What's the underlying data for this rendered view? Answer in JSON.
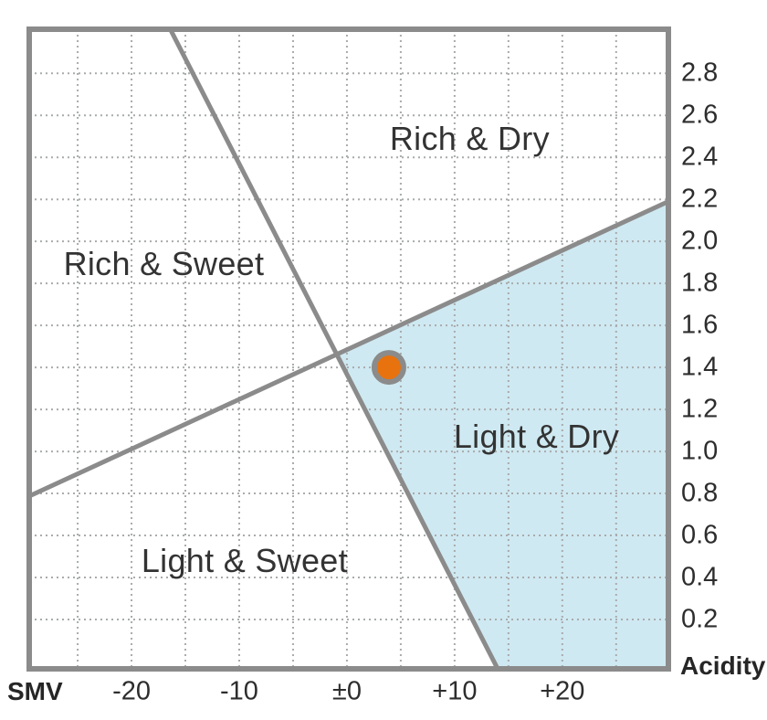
{
  "chart_data": {
    "type": "scatter",
    "title": "",
    "x_axis": {
      "label": "SMV",
      "range": [
        -29.5,
        29.85
      ],
      "ticks": [
        {
          "value": -20,
          "label": "-20"
        },
        {
          "value": -10,
          "label": "-10"
        },
        {
          "value": 0,
          "label": "±0"
        },
        {
          "value": 10,
          "label": "+10"
        },
        {
          "value": 20,
          "label": "+20"
        }
      ],
      "grid": true,
      "grid_values": [
        -25,
        -20,
        -15,
        -10,
        -5,
        0,
        5,
        10,
        15,
        20,
        25
      ]
    },
    "y_axis": {
      "label": "Acidity",
      "range": [
        -0.035,
        3.01
      ],
      "ticks": [
        {
          "value": 2.8,
          "label": "2.8"
        },
        {
          "value": 2.6,
          "label": "2.6"
        },
        {
          "value": 2.4,
          "label": "2.4"
        },
        {
          "value": 2.2,
          "label": "2.2"
        },
        {
          "value": 2.0,
          "label": "2.0"
        },
        {
          "value": 1.8,
          "label": "1.8"
        },
        {
          "value": 1.6,
          "label": "1.6"
        },
        {
          "value": 1.4,
          "label": "1.4"
        },
        {
          "value": 1.2,
          "label": "1.2"
        },
        {
          "value": 1.0,
          "label": "1.0"
        },
        {
          "value": 0.8,
          "label": "0.8"
        },
        {
          "value": 0.6,
          "label": "0.6"
        },
        {
          "value": 0.4,
          "label": "0.4"
        },
        {
          "value": 0.2,
          "label": "0.2"
        }
      ],
      "grid": true,
      "grid_values": [
        0.2,
        0.4,
        0.6,
        0.8,
        1.0,
        1.2,
        1.4,
        1.6,
        1.8,
        2.0,
        2.2,
        2.4,
        2.6,
        2.8
      ]
    },
    "regions": [
      {
        "label": "Rich & Dry",
        "x": 11.4,
        "y": 2.49
      },
      {
        "label": "Rich & Sweet",
        "x": -17.0,
        "y": 1.89
      },
      {
        "label": "Light & Dry",
        "x": 17.6,
        "y": 1.07
      },
      {
        "label": "Light & Sweet",
        "x": -9.5,
        "y": 0.48
      }
    ],
    "boundary_lines": [
      {
        "name": "dry-sweet-boundary",
        "points": [
          [
            -16.4,
            3.01
          ],
          [
            14.0,
            -0.035
          ]
        ]
      },
      {
        "name": "rich-light-boundary",
        "points": [
          [
            -29.5,
            0.787
          ],
          [
            29.85,
            2.19
          ]
        ]
      }
    ],
    "highlighted_region": {
      "name": "light-and-dry",
      "points": [
        [
          -0.93,
          1.46
        ],
        [
          29.85,
          2.19
        ],
        [
          29.85,
          -0.035
        ],
        [
          14.0,
          -0.035
        ]
      ]
    },
    "points": [
      {
        "name": "sake-position",
        "x": 3.9,
        "y": 1.4
      }
    ],
    "colors": {
      "highlight_fill": "#cfe9f2",
      "point_fill": "#e8720e",
      "point_ring": "#8b8b8b",
      "line": "#8b8b8b",
      "border": "#8b8b8b",
      "grid": "#a9abac",
      "text": "#2f2f2f"
    }
  }
}
